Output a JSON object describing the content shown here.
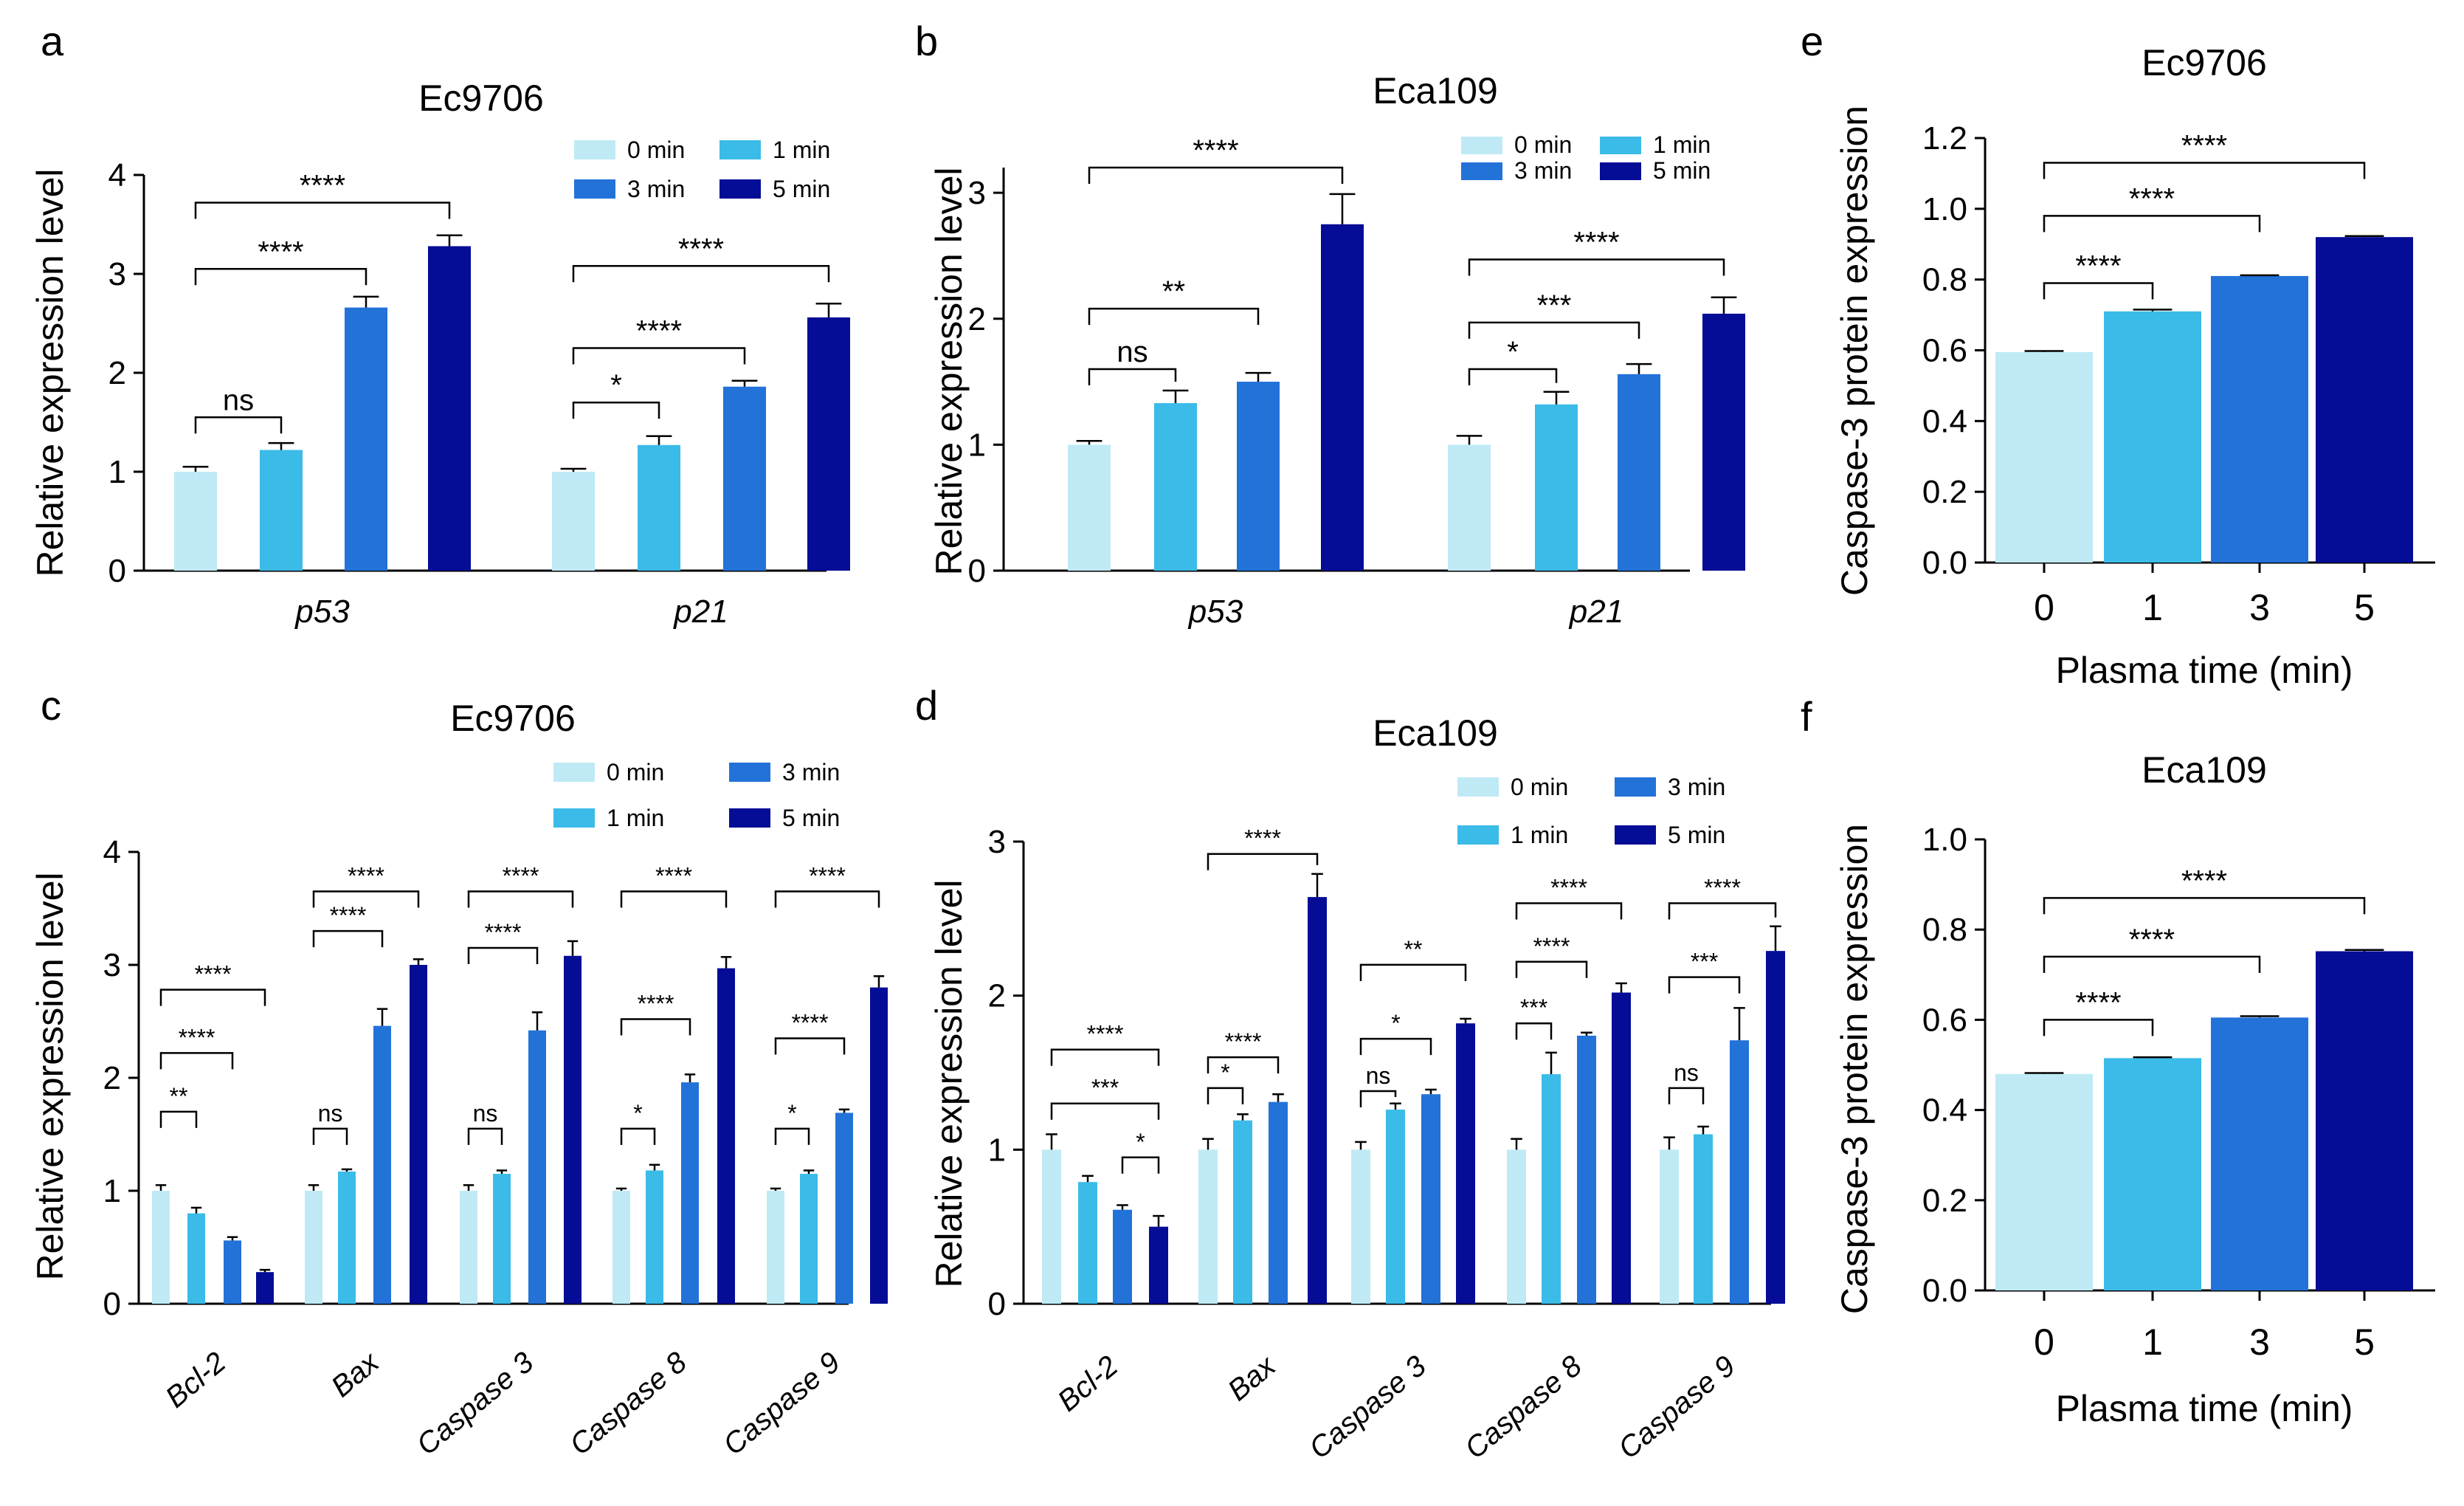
{
  "colors": {
    "t0": "#bfeaf5",
    "t1": "#3bbbe8",
    "t3": "#2272d8",
    "t5": "#050c96"
  },
  "legend": [
    "0 min",
    "1 min",
    "3 min",
    "5 min"
  ],
  "chart_data": [
    {
      "id": "a",
      "type": "bar",
      "letter": "a",
      "title": "Ec9706",
      "ylabel": "Relative expression level",
      "xlabel": "",
      "ylim": [
        0,
        4
      ],
      "yticks": [
        0,
        1,
        2,
        3,
        4
      ],
      "categories": [
        "p53",
        "p21"
      ],
      "series": [
        {
          "name": "0 min",
          "values": [
            1.0,
            1.0
          ],
          "errors": [
            0.05,
            0.03
          ]
        },
        {
          "name": "1 min",
          "values": [
            1.22,
            1.27
          ],
          "errors": [
            0.07,
            0.09
          ]
        },
        {
          "name": "3 min",
          "values": [
            2.66,
            1.86
          ],
          "errors": [
            0.11,
            0.06
          ]
        },
        {
          "name": "5 min",
          "values": [
            3.28,
            2.56
          ],
          "errors": [
            0.11,
            0.14
          ]
        }
      ],
      "annotations": [
        {
          "group": 0,
          "from": 0,
          "to": 1,
          "label": "ns",
          "y": 1.55
        },
        {
          "group": 0,
          "from": 0,
          "to": 2,
          "label": "****",
          "y": 3.05
        },
        {
          "group": 0,
          "from": 0,
          "to": 3,
          "label": "****",
          "y": 3.72
        },
        {
          "group": 1,
          "from": 0,
          "to": 1,
          "label": "*",
          "y": 1.7
        },
        {
          "group": 1,
          "from": 0,
          "to": 2,
          "label": "****",
          "y": 2.25
        },
        {
          "group": 1,
          "from": 0,
          "to": 3,
          "label": "****",
          "y": 3.08
        }
      ]
    },
    {
      "id": "b",
      "type": "bar",
      "letter": "b",
      "title": "Eca109",
      "ylabel": "Relative expression level",
      "xlabel": "",
      "ylim": [
        0,
        3.2
      ],
      "yticks": [
        0,
        1,
        2,
        3
      ],
      "categories": [
        "p53",
        "p21"
      ],
      "series": [
        {
          "name": "0 min",
          "values": [
            1.0,
            1.0
          ],
          "errors": [
            0.03,
            0.07
          ]
        },
        {
          "name": "1 min",
          "values": [
            1.33,
            1.32
          ],
          "errors": [
            0.1,
            0.1
          ]
        },
        {
          "name": "3 min",
          "values": [
            1.5,
            1.56
          ],
          "errors": [
            0.07,
            0.08
          ]
        },
        {
          "name": "5 min",
          "values": [
            2.75,
            2.04
          ],
          "errors": [
            0.24,
            0.13
          ]
        }
      ],
      "annotations": [
        {
          "group": 0,
          "from": 0,
          "to": 1,
          "label": "ns",
          "y": 1.6
        },
        {
          "group": 0,
          "from": 0,
          "to": 2,
          "label": "**",
          "y": 2.08
        },
        {
          "group": 0,
          "from": 0,
          "to": 3,
          "label": "****",
          "y": 3.2
        },
        {
          "group": 1,
          "from": 0,
          "to": 1,
          "label": "*",
          "y": 1.6
        },
        {
          "group": 1,
          "from": 0,
          "to": 2,
          "label": "***",
          "y": 1.97
        },
        {
          "group": 1,
          "from": 0,
          "to": 3,
          "label": "****",
          "y": 2.47
        }
      ]
    },
    {
      "id": "c",
      "type": "bar",
      "letter": "c",
      "title": "Ec9706",
      "ylabel": "Relative expression level",
      "xlabel": "",
      "ylim": [
        0,
        4
      ],
      "yticks": [
        0,
        1,
        2,
        3,
        4
      ],
      "categories": [
        "Bcl-2",
        "Bax",
        "Caspase 3",
        "Caspase 8",
        "Caspase 9"
      ],
      "series": [
        {
          "name": "0 min",
          "values": [
            1.0,
            1.0,
            1.0,
            1.0,
            1.0
          ],
          "errors": [
            0.05,
            0.05,
            0.05,
            0.02,
            0.02
          ]
        },
        {
          "name": "1 min",
          "values": [
            0.8,
            1.17,
            1.15,
            1.18,
            1.15
          ],
          "errors": [
            0.05,
            0.02,
            0.03,
            0.05,
            0.03
          ]
        },
        {
          "name": "3 min",
          "values": [
            0.56,
            2.46,
            2.42,
            1.96,
            1.69
          ],
          "errors": [
            0.03,
            0.15,
            0.16,
            0.07,
            0.03
          ]
        },
        {
          "name": "5 min",
          "values": [
            0.28,
            3.0,
            3.08,
            2.97,
            2.8
          ],
          "errors": [
            0.02,
            0.05,
            0.13,
            0.1,
            0.1
          ]
        }
      ],
      "annotations": [
        {
          "group": 0,
          "from": 0,
          "to": 1,
          "label": "**",
          "y": 1.7
        },
        {
          "group": 0,
          "from": 0,
          "to": 2,
          "label": "****",
          "y": 2.22
        },
        {
          "group": 0,
          "from": 0,
          "to": 3,
          "label": "****",
          "y": 2.78
        },
        {
          "group": 1,
          "from": 0,
          "to": 1,
          "label": "ns",
          "y": 1.55
        },
        {
          "group": 1,
          "from": 0,
          "to": 2,
          "label": "****",
          "y": 3.3
        },
        {
          "group": 1,
          "from": 0,
          "to": 3,
          "label": "****",
          "y": 3.65
        },
        {
          "group": 2,
          "from": 0,
          "to": 1,
          "label": "ns",
          "y": 1.55
        },
        {
          "group": 2,
          "from": 0,
          "to": 2,
          "label": "****",
          "y": 3.15
        },
        {
          "group": 2,
          "from": 0,
          "to": 3,
          "label": "****",
          "y": 3.65
        },
        {
          "group": 3,
          "from": 0,
          "to": 1,
          "label": "*",
          "y": 1.55
        },
        {
          "group": 3,
          "from": 0,
          "to": 2,
          "label": "****",
          "y": 2.52
        },
        {
          "group": 3,
          "from": 0,
          "to": 3,
          "label": "****",
          "y": 3.65
        },
        {
          "group": 4,
          "from": 0,
          "to": 1,
          "label": "*",
          "y": 1.55
        },
        {
          "group": 4,
          "from": 0,
          "to": 2,
          "label": "****",
          "y": 2.35
        },
        {
          "group": 4,
          "from": 0,
          "to": 3,
          "label": "****",
          "y": 3.65
        }
      ]
    },
    {
      "id": "d",
      "type": "bar",
      "letter": "d",
      "title": "Eca109",
      "ylabel": "Relative expression level",
      "xlabel": "",
      "ylim": [
        0,
        3
      ],
      "yticks": [
        0,
        1,
        2,
        3
      ],
      "categories": [
        "Bcl-2",
        "Bax",
        "Caspase 3",
        "Caspase 8",
        "Caspase 9"
      ],
      "series": [
        {
          "name": "0 min",
          "values": [
            1.0,
            1.0,
            1.0,
            1.0,
            1.0
          ],
          "errors": [
            0.1,
            0.07,
            0.05,
            0.07,
            0.08
          ]
        },
        {
          "name": "1 min",
          "values": [
            0.79,
            1.19,
            1.26,
            1.49,
            1.1
          ],
          "errors": [
            0.04,
            0.04,
            0.04,
            0.14,
            0.05
          ]
        },
        {
          "name": "3 min",
          "values": [
            0.61,
            1.31,
            1.36,
            1.74,
            1.71
          ],
          "errors": [
            0.03,
            0.05,
            0.03,
            0.02,
            0.21
          ]
        },
        {
          "name": "5 min",
          "values": [
            0.5,
            2.64,
            1.82,
            2.02,
            2.29
          ],
          "errors": [
            0.07,
            0.15,
            0.03,
            0.06,
            0.16
          ]
        }
      ],
      "annotations": [
        {
          "group": 0,
          "from": 2,
          "to": 3,
          "label": "*",
          "y": 0.95
        },
        {
          "group": 0,
          "from": 0,
          "to": 3,
          "label": "***",
          "y": 1.3
        },
        {
          "group": 0,
          "from": 0,
          "to": 3,
          "label": "****",
          "y": 1.65
        },
        {
          "group": 1,
          "from": 0,
          "to": 1,
          "label": "*",
          "y": 1.4
        },
        {
          "group": 1,
          "from": 0,
          "to": 2,
          "label": "****",
          "y": 1.6
        },
        {
          "group": 1,
          "from": 0,
          "to": 3,
          "label": "****",
          "y": 2.92
        },
        {
          "group": 2,
          "from": 0,
          "to": 1,
          "label": "ns",
          "y": 1.38
        },
        {
          "group": 2,
          "from": 0,
          "to": 2,
          "label": "*",
          "y": 1.72
        },
        {
          "group": 2,
          "from": 0,
          "to": 3,
          "label": "**",
          "y": 2.2
        },
        {
          "group": 3,
          "from": 0,
          "to": 1,
          "label": "***",
          "y": 1.82
        },
        {
          "group": 3,
          "from": 0,
          "to": 2,
          "label": "****",
          "y": 2.22
        },
        {
          "group": 3,
          "from": 0,
          "to": 3,
          "label": "****",
          "y": 2.6
        },
        {
          "group": 4,
          "from": 0,
          "to": 1,
          "label": "ns",
          "y": 1.4
        },
        {
          "group": 4,
          "from": 0,
          "to": 2,
          "label": "***",
          "y": 2.12
        },
        {
          "group": 4,
          "from": 0,
          "to": 3,
          "label": "****",
          "y": 2.6
        }
      ]
    },
    {
      "id": "e",
      "type": "bar",
      "letter": "e",
      "title": "Ec9706",
      "ylabel": "Caspase-3 protein expression",
      "xlabel": "Plasma time (min)",
      "ylim": [
        0,
        1.2
      ],
      "yticks": [
        0.0,
        0.2,
        0.4,
        0.6,
        0.8,
        1.0,
        1.2
      ],
      "categories": [
        "0",
        "1",
        "3",
        "5"
      ],
      "values": [
        0.595,
        0.71,
        0.81,
        0.92
      ],
      "errors": [
        0.003,
        0.005,
        0.002,
        0.003
      ],
      "annotations": [
        {
          "from": 0,
          "to": 1,
          "label": "****",
          "y": 0.79
        },
        {
          "from": 0,
          "to": 2,
          "label": "****",
          "y": 0.98
        },
        {
          "from": 0,
          "to": 3,
          "label": "****",
          "y": 1.13
        }
      ]
    },
    {
      "id": "f",
      "type": "bar",
      "letter": "f",
      "title": "Eca109",
      "ylabel": "Caspase-3 protein expression",
      "xlabel": "Plasma time (min)",
      "ylim": [
        0,
        1.0
      ],
      "yticks": [
        0.0,
        0.2,
        0.4,
        0.6,
        0.8,
        1.0
      ],
      "categories": [
        "0",
        "1",
        "3",
        "5"
      ],
      "values": [
        0.48,
        0.515,
        0.605,
        0.752
      ],
      "errors": [
        0.002,
        0.002,
        0.003,
        0.003
      ],
      "annotations": [
        {
          "from": 0,
          "to": 1,
          "label": "****",
          "y": 0.6
        },
        {
          "from": 0,
          "to": 2,
          "label": "****",
          "y": 0.74
        },
        {
          "from": 0,
          "to": 3,
          "label": "****",
          "y": 0.87
        }
      ]
    }
  ]
}
